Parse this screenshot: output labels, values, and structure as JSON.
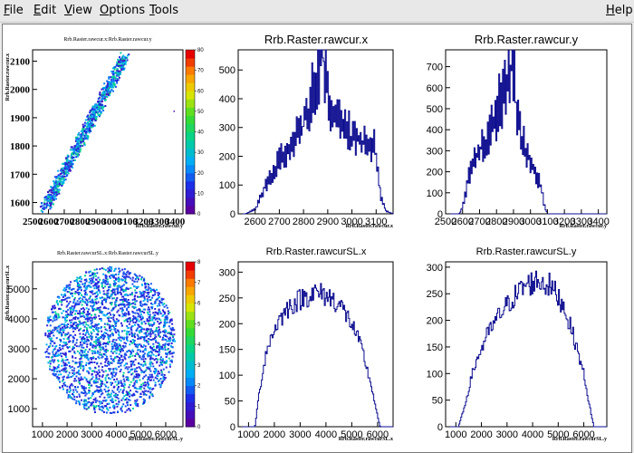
{
  "menubar": {
    "file": {
      "first": "F",
      "rest": "ile"
    },
    "edit": {
      "first": "E",
      "rest": "dit"
    },
    "view": {
      "first": "V",
      "rest": "iew"
    },
    "options": {
      "first": "O",
      "rest": "ptions"
    },
    "tools": {
      "first": "T",
      "rest": "ools"
    },
    "help": {
      "first": "H",
      "rest": "elp"
    }
  },
  "colors": {
    "hist": "#0b0b8f",
    "background": "#ffffff",
    "frame": "#000000"
  },
  "chart_data": [
    {
      "type": "heatmap",
      "title": "Rrb.Raster.rawcur.x:Rrb.Raster.rawcur.y",
      "xlabel": "Rrb.Raster.rawcur.y",
      "ylabel": "Rrb.Raster.rawcur.x",
      "x_ticks": [
        "2500",
        "2600",
        "2700",
        "2800",
        "2900",
        "3000",
        "3100",
        "3200",
        "3300",
        "3400"
      ],
      "y_ticks": [
        "1600",
        "1700",
        "1800",
        "1900",
        "2000",
        "2100"
      ],
      "z_ticks": [
        "0",
        "10",
        "20",
        "30",
        "40",
        "50",
        "60",
        "70",
        "80"
      ],
      "xlim": [
        2500,
        3450
      ],
      "ylim": [
        1560,
        2140
      ],
      "zlim": [
        0,
        80
      ],
      "pattern": "diagonal band from (2570,1580) to (3080,2120)"
    },
    {
      "type": "bar",
      "title": "Rrb.Raster.rawcur.x",
      "xlabel": "Rrb.Raster.rawcur.x",
      "x_ticks": [
        "2600",
        "2700",
        "2800",
        "2900",
        "3000",
        "3100"
      ],
      "y_ticks": [
        "0",
        "100",
        "200",
        "300",
        "400",
        "500"
      ],
      "xlim": [
        2530,
        3170
      ],
      "ylim": [
        0,
        570
      ],
      "profile_x": [
        2560,
        2600,
        2640,
        2700,
        2760,
        2800,
        2840,
        2860,
        2880,
        2900,
        2940,
        2960,
        3000,
        3060,
        3100,
        3120,
        3140,
        3170
      ],
      "profile_y": [
        0,
        15,
        90,
        180,
        240,
        310,
        400,
        480,
        550,
        400,
        330,
        300,
        260,
        250,
        210,
        60,
        10,
        0
      ]
    },
    {
      "type": "bar",
      "title": "Rrb.Raster.rawcur.y",
      "xlabel": "Rrb.Raster.rawcur.y",
      "x_ticks": [
        "2500",
        "2600",
        "2700",
        "2800",
        "2900",
        "3000",
        "3100",
        "3200",
        "3300",
        "3400"
      ],
      "y_ticks": [
        "0",
        "100",
        "200",
        "300",
        "400",
        "500",
        "600",
        "700"
      ],
      "xlim": [
        2500,
        3450
      ],
      "ylim": [
        0,
        780
      ],
      "profile_x": [
        2580,
        2600,
        2640,
        2700,
        2760,
        2800,
        2840,
        2870,
        2890,
        2910,
        2940,
        2980,
        3020,
        3060,
        3080,
        3100
      ],
      "profile_y": [
        0,
        30,
        180,
        300,
        360,
        450,
        560,
        660,
        720,
        540,
        380,
        280,
        200,
        140,
        40,
        0
      ]
    },
    {
      "type": "heatmap",
      "title": "Rrb.Raster.rawcurSL.x:Rrb.Raster.rawcurSL.y",
      "xlabel": "Rrb.Raster.rawcurSL.y",
      "ylabel": "Rrb.Raster.rawcurSL.x",
      "x_ticks": [
        "1000",
        "2000",
        "3000",
        "4000",
        "5000",
        "6000"
      ],
      "y_ticks": [
        "1000",
        "2000",
        "3000",
        "4000",
        "5000"
      ],
      "z_ticks": [
        "0",
        "1",
        "2",
        "3",
        "4",
        "5",
        "6",
        "7",
        "8"
      ],
      "xlim": [
        600,
        6700
      ],
      "ylim": [
        400,
        5900
      ],
      "zlim": [
        0,
        8
      ],
      "pattern": "filled disk centered (3700,3300) radius ~2600"
    },
    {
      "type": "bar",
      "title": "Rrb.Raster.rawcurSL.x",
      "xlabel": "Rrb.Raster.rawcurSL.x",
      "x_ticks": [
        "1000",
        "2000",
        "3000",
        "4000",
        "5000",
        "6000"
      ],
      "y_ticks": [
        "0",
        "50",
        "100",
        "150",
        "200",
        "250",
        "300"
      ],
      "xlim": [
        600,
        6600
      ],
      "ylim": [
        0,
        320
      ],
      "profile_x": [
        1250,
        1400,
        1700,
        2100,
        2600,
        3100,
        3500,
        4000,
        4500,
        5000,
        5400,
        5800,
        6000,
        6100
      ],
      "profile_y": [
        0,
        60,
        150,
        200,
        235,
        250,
        260,
        255,
        240,
        200,
        150,
        70,
        20,
        0
      ]
    },
    {
      "type": "bar",
      "title": "Rrb.Raster.rawcurSL.y",
      "xlabel": "Rrb.Raster.rawcurSL.y",
      "x_ticks": [
        "1000",
        "2000",
        "3000",
        "4000",
        "5000",
        "6000"
      ],
      "y_ticks": [
        "0",
        "50",
        "100",
        "150",
        "200",
        "250",
        "300"
      ],
      "xlim": [
        600,
        6900
      ],
      "ylim": [
        0,
        310
      ],
      "profile_x": [
        1100,
        1300,
        1700,
        2200,
        2700,
        3200,
        3700,
        4200,
        4700,
        5200,
        5600,
        6000,
        6300,
        6400
      ],
      "profile_y": [
        0,
        30,
        110,
        170,
        210,
        240,
        265,
        275,
        265,
        230,
        170,
        100,
        20,
        0
      ]
    }
  ]
}
